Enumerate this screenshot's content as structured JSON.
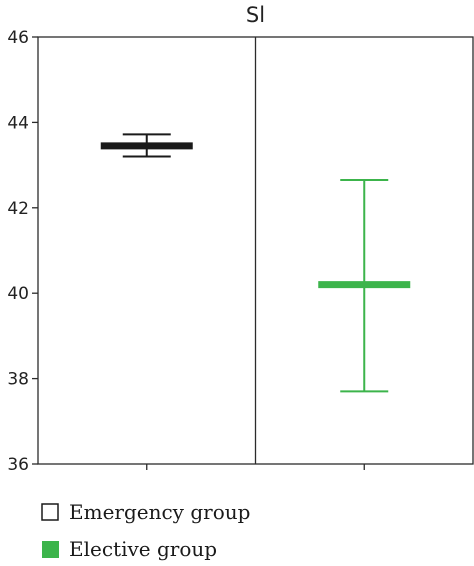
{
  "chart_data": {
    "type": "errorbar",
    "title": "Sl",
    "xlabel": "",
    "ylabel": "",
    "ylim": [
      36,
      46
    ],
    "yticks": [
      36,
      38,
      40,
      42,
      44,
      46
    ],
    "grid": false,
    "legend_position": "bottom",
    "series": [
      {
        "name": "Emergency group",
        "mean": 43.45,
        "lower": 43.2,
        "upper": 43.72,
        "color": "#1a1a1a"
      },
      {
        "name": "Elective group",
        "mean": 40.2,
        "lower": 37.7,
        "upper": 42.65,
        "color": "#3cb44b"
      }
    ]
  }
}
